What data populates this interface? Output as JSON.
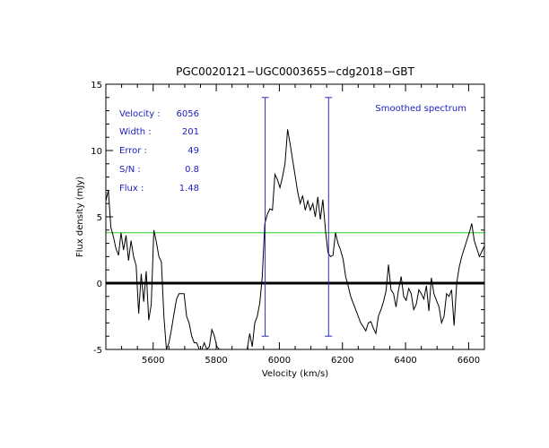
{
  "chart_data": {
    "type": "line",
    "title": "PGC0020121−UGC0003655−cdg2018−GBT",
    "xlabel": "Velocity (km/s)",
    "ylabel": "Flux density (mJy)",
    "xlim": [
      5450,
      6650
    ],
    "ylim": [
      -5,
      15
    ],
    "xticks": [
      5600,
      5800,
      6000,
      6200,
      6400,
      6600
    ],
    "yticks": [
      -5,
      0,
      5,
      10,
      15
    ],
    "legend_text": "Smoothed spectrum",
    "stats": [
      {
        "label": "Velocity :",
        "value": "6056"
      },
      {
        "label": "Width :",
        "value": "201"
      },
      {
        "label": "Error :",
        "value": "49"
      },
      {
        "label": "S/N :",
        "value": "0.8"
      },
      {
        "label": "Flux :",
        "value": "1.48"
      }
    ],
    "baseline": 0,
    "noise_level": 3.8,
    "velocity_markers": [
      5955,
      6156
    ],
    "marker_range": [
      -4,
      14
    ],
    "series": [
      {
        "name": "Smoothed spectrum",
        "x": [
          5450,
          5458,
          5466,
          5474,
          5482,
          5490,
          5498,
          5506,
          5514,
          5522,
          5530,
          5538,
          5546,
          5554,
          5562,
          5570,
          5578,
          5586,
          5594,
          5602,
          5610,
          5618,
          5626,
          5634,
          5642,
          5650,
          5658,
          5666,
          5674,
          5682,
          5690,
          5698,
          5706,
          5714,
          5722,
          5730,
          5738,
          5746,
          5754,
          5762,
          5770,
          5778,
          5786,
          5794,
          5802,
          5810,
          5818,
          5826,
          5834,
          5842,
          5850,
          5858,
          5866,
          5874,
          5882,
          5890,
          5898,
          5906,
          5914,
          5922,
          5930,
          5938,
          5946,
          5954,
          5962,
          5970,
          5978,
          5986,
          5994,
          6002,
          6010,
          6018,
          6026,
          6034,
          6042,
          6050,
          6058,
          6066,
          6074,
          6082,
          6090,
          6098,
          6106,
          6114,
          6122,
          6130,
          6138,
          6146,
          6154,
          6162,
          6170,
          6178,
          6186,
          6194,
          6202,
          6210,
          6218,
          6226,
          6234,
          6242,
          6250,
          6258,
          6266,
          6274,
          6282,
          6290,
          6298,
          6306,
          6314,
          6322,
          6330,
          6338,
          6346,
          6354,
          6362,
          6370,
          6378,
          6386,
          6394,
          6402,
          6410,
          6418,
          6426,
          6434,
          6442,
          6450,
          6458,
          6466,
          6474,
          6482,
          6490,
          6498,
          6506,
          6514,
          6522,
          6530,
          6538,
          6546,
          6554,
          6562,
          6570,
          6578,
          6586,
          6594,
          6602,
          6610,
          6618,
          6626,
          6634,
          6642,
          6650
        ],
        "y": [
          6.2,
          7.0,
          4.2,
          3.5,
          2.6,
          2.1,
          3.8,
          2.5,
          3.6,
          1.7,
          3.2,
          2.0,
          1.3,
          -2.3,
          0.7,
          -1.4,
          0.9,
          -2.8,
          -1.6,
          4.0,
          3.1,
          2.0,
          1.6,
          -2.5,
          -5.0,
          -4.5,
          -3.5,
          -2.3,
          -1.2,
          -0.8,
          -0.8,
          -0.8,
          -2.5,
          -3.0,
          -4.0,
          -4.5,
          -4.5,
          -5.0,
          -5.0,
          -4.5,
          -5.0,
          -4.8,
          -3.5,
          -4.0,
          -4.8,
          -5.0,
          -5.0,
          -5.0,
          -5.0,
          -5.0,
          -5.0,
          -5.0,
          -5.0,
          -5.0,
          -5.0,
          -5.0,
          -5.0,
          -3.8,
          -4.8,
          -3.0,
          -2.5,
          -1.5,
          0.5,
          4.5,
          5.2,
          5.6,
          5.5,
          8.2,
          7.8,
          7.2,
          8.0,
          9.0,
          11.6,
          10.5,
          9.3,
          8.1,
          6.9,
          6.0,
          6.6,
          5.5,
          6.2,
          5.5,
          6.0,
          5.0,
          6.5,
          4.8,
          6.3,
          4.0,
          2.3,
          2.0,
          2.1,
          3.8,
          3.0,
          2.5,
          1.8,
          0.5,
          -0.2,
          -1.0,
          -1.5,
          -2.0,
          -2.5,
          -3.0,
          -3.3,
          -3.6,
          -3.0,
          -2.9,
          -3.4,
          -3.8,
          -2.5,
          -2.0,
          -1.4,
          -0.6,
          1.4,
          -0.5,
          -0.8,
          -1.8,
          -0.5,
          0.5,
          -1.0,
          -1.3,
          -0.4,
          -0.8,
          -2.0,
          -1.6,
          -0.5,
          -0.8,
          -1.2,
          -0.2,
          -2.1,
          0.4,
          -0.8,
          -1.3,
          -1.8,
          -3.0,
          -2.5,
          -0.8,
          -1.0,
          -0.5,
          -3.2,
          0.0,
          1.2,
          2.0,
          2.6,
          3.2,
          3.8,
          4.5,
          3.2,
          2.6,
          2.0,
          2.4,
          2.8
        ]
      }
    ],
    "colors": {
      "spectrum": "#000000",
      "baseline": "#000000",
      "noise": "#22cc22",
      "markers": "#2b2bbb",
      "annotation": "#2020c0"
    }
  }
}
